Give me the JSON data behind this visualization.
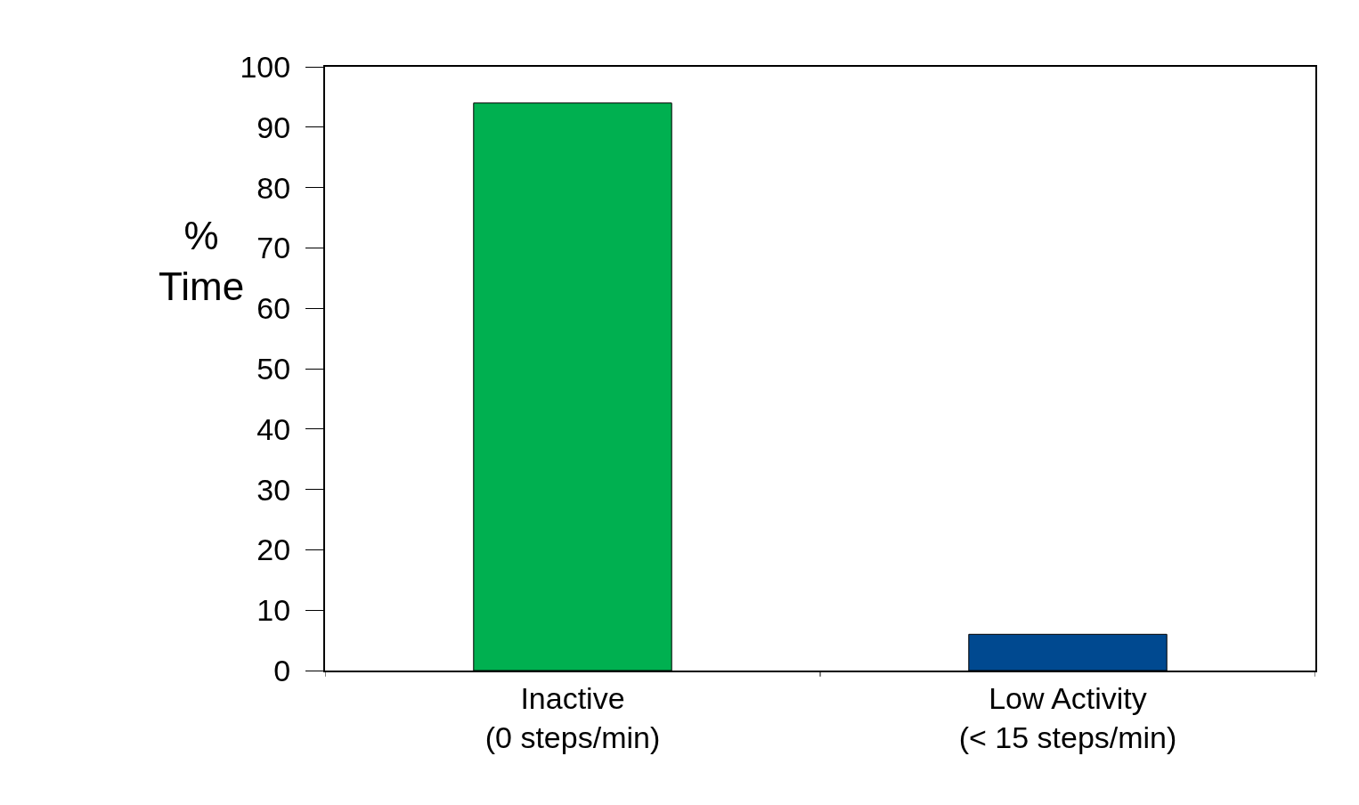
{
  "chart_data": {
    "type": "bar",
    "ylabel": "%\nTime",
    "categories": [
      "Inactive\n(0 steps/min)",
      "Low Activity\n(< 15 steps/min)"
    ],
    "values": [
      94,
      6
    ],
    "colors": [
      "#00b050",
      "#004990"
    ],
    "ylim": [
      0,
      100
    ],
    "yticks": [
      0,
      10,
      20,
      30,
      40,
      50,
      60,
      70,
      80,
      90,
      100
    ]
  }
}
